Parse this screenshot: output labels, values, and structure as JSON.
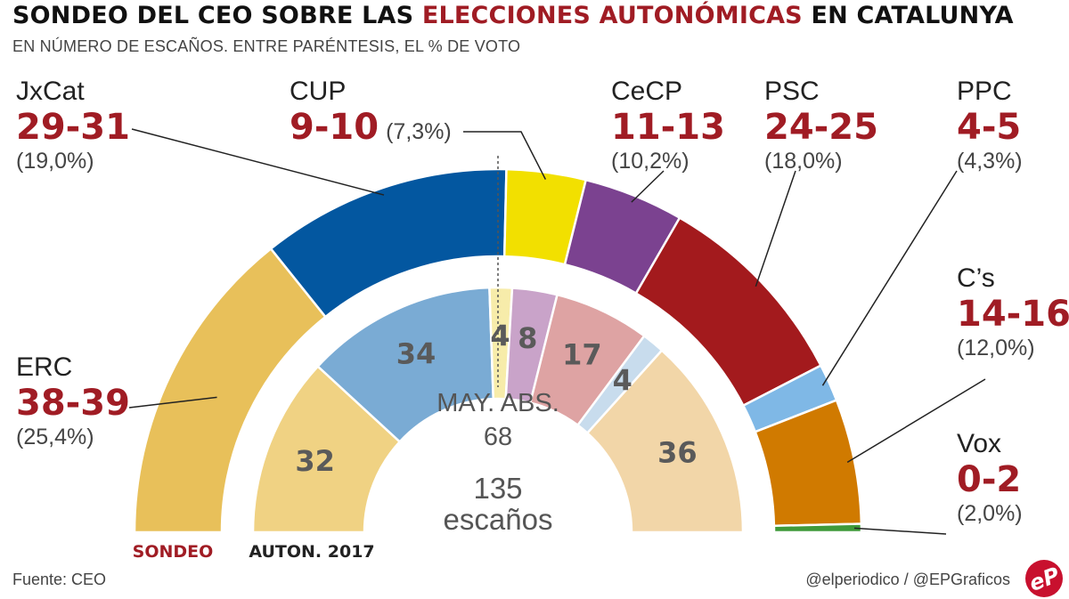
{
  "title": {
    "part1": "SONDEO DEL CEO SOBRE LAS ",
    "highlight": "ELECCIONES AUTONÓMICAS",
    "part2": " EN CATALUNYA"
  },
  "subtitle": "EN NÚMERO DE ESCAÑOS.  ENTRE PARÉNTESIS, EL % DE VOTO",
  "chart_data": {
    "type": "semicircle-parliament",
    "total_seats": 135,
    "total_label": "135",
    "total_unit": "escaños",
    "majority_label": "MAY. ABS.",
    "majority_value": "68",
    "outer_ring_label": "SONDEO",
    "inner_ring_label": "AUTON. 2017",
    "sondeo": [
      {
        "party": "ERC",
        "seats_label": "38-39",
        "pct": "(25,4%)",
        "seats": 38.5,
        "color": "#e8c05a"
      },
      {
        "party": "JxCat",
        "seats_label": "29-31",
        "pct": "(19,0%)",
        "seats": 30,
        "color": "#0357a0"
      },
      {
        "party": "CUP",
        "seats_label": "9-10",
        "pct": "(7,3%)",
        "seats": 9.5,
        "color": "#f2e000"
      },
      {
        "party": "CeCP",
        "seats_label": "11-13",
        "pct": "(10,2%)",
        "seats": 12,
        "color": "#7b4290"
      },
      {
        "party": "PSC",
        "seats_label": "24-25",
        "pct": "(18,0%)",
        "seats": 24.5,
        "color": "#a31a1d"
      },
      {
        "party": "PPC",
        "seats_label": "4-5",
        "pct": "(4,3%)",
        "seats": 4.5,
        "color": "#7fb8e6"
      },
      {
        "party": "C’s",
        "seats_label": "14-16",
        "pct": "(12,0%)",
        "seats": 15,
        "color": "#d07a00"
      },
      {
        "party": "Vox",
        "seats_label": "0-2",
        "pct": "(2,0%)",
        "seats": 1,
        "color": "#3f9a3a"
      }
    ],
    "auton_2017": [
      {
        "party": "ERC",
        "seats": 32,
        "label": "32",
        "color": "#f0d283"
      },
      {
        "party": "JxCat",
        "seats": 34,
        "label": "34",
        "color": "#7aabd4"
      },
      {
        "party": "CUP",
        "seats": 4,
        "label": "4",
        "color": "#f7ecaa"
      },
      {
        "party": "CeCP",
        "seats": 8,
        "label": "8",
        "color": "#c9a3c9"
      },
      {
        "party": "PSC",
        "seats": 17,
        "label": "17",
        "color": "#dea3a3"
      },
      {
        "party": "PPC",
        "seats": 4,
        "label": "4",
        "color": "#c8dced"
      },
      {
        "party": "C’s",
        "seats": 36,
        "label": "36",
        "color": "#f2d6a8"
      }
    ]
  },
  "footer": {
    "source": "Fuente: CEO",
    "credit": "@elperiodico / @EPGraficos"
  },
  "logo_text": "eP",
  "colors": {
    "accent": "#a01c24",
    "inner_label": "#5a5a5a"
  }
}
